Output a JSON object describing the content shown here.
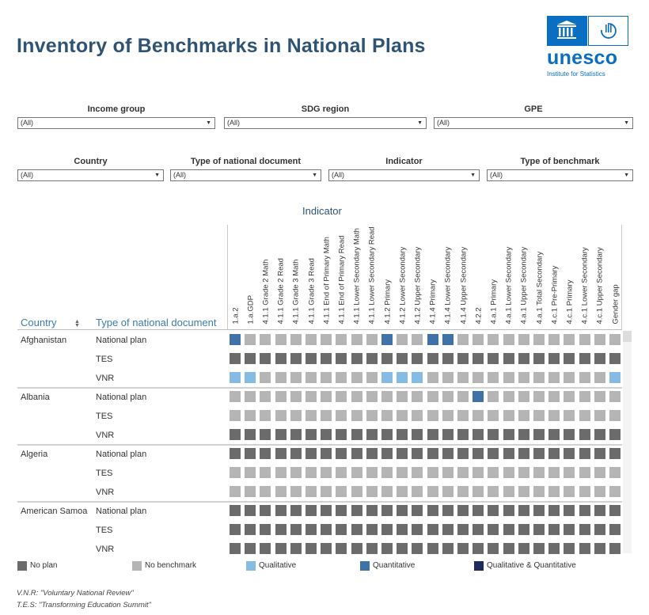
{
  "title": "Inventory of Benchmarks in National Plans",
  "logo": {
    "word": "unesco",
    "sub": "Institute for Statistics"
  },
  "filters": [
    {
      "label": "Income group",
      "value": "(All)"
    },
    {
      "label": "SDG region",
      "value": "(All)"
    },
    {
      "label": "GPE",
      "value": "(All)"
    },
    {
      "label": "Country",
      "value": "(All)"
    },
    {
      "label": "Type of national document",
      "value": "(All)"
    },
    {
      "label": "Indicator",
      "value": "(All)"
    },
    {
      "label": "Type of benchmark",
      "value": "(All)"
    }
  ],
  "table": {
    "indicator_title": "Indicator",
    "country_header": "Country",
    "doctype_header": "Type of national document",
    "columns": [
      "1.a.2",
      "1.a.GDP",
      "4.1.1 Grade 2 Math",
      "4.1.1 Grade 2 Read",
      "4.1.1 Grade 3 Math",
      "4.1.1 Grade 3 Read",
      "4.1.1 End of Primary Math",
      "4.1.1 End of Primary Read",
      "4.1.1 Lower Secondary Math",
      "4.1.1 Lower Secondary Read",
      "4.1.2 Primary",
      "4.1.2 Lower Secondary",
      "4.1.2 Upper Secondary",
      "4.1.4 Primary",
      "4.1.4 Lower Secondary",
      "4.1.4 Upper Secondary",
      "4.2.2",
      "4.a.1 Primary",
      "4.a.1 Lower Secondary",
      "4.a.1 Upper Secondary",
      "4.a.1 Total Secondary",
      "4.c.1 Pre-Primary",
      "4.c.1 Primary",
      "4.c.1 Lower Secondary",
      "4.c.1 Upper Secondary",
      "Gender gap"
    ],
    "countries": [
      {
        "name": "Afghanistan",
        "rows": [
          {
            "type": "National plan",
            "cells": "QNNNNNNNNNQNNQQNNNNNNNNNNN"
          },
          {
            "type": "TES",
            "cells": "PPPPPPPPPPPPPPPPPPPPPPPPPP"
          },
          {
            "type": "VNR",
            "cells": "LLNNNNNNNNLLLNNNNNNNNNNNNL"
          }
        ]
      },
      {
        "name": "Albania",
        "rows": [
          {
            "type": "National plan",
            "cells": "NNNNNNNNNNNNNNNNQNNNNNNNNN"
          },
          {
            "type": "TES",
            "cells": "NNNNNNNNNNNNNNNNNNNNNNNNNN"
          },
          {
            "type": "VNR",
            "cells": "PPPPPPPPPPPPPPPPPPPPPPPPPP"
          }
        ]
      },
      {
        "name": "Algeria",
        "rows": [
          {
            "type": "National plan",
            "cells": "PPPPPPPPPPPPPPPPPPPPPPPPPP"
          },
          {
            "type": "TES",
            "cells": "NNNNNNNNNNNNNNNNNNNNNNNNNN"
          },
          {
            "type": "VNR",
            "cells": "NNNNNNNNNNNNNNNNNNNNNNNNNN"
          }
        ]
      },
      {
        "name": "American Samoa",
        "rows": [
          {
            "type": "National plan",
            "cells": "PPPPPPPPPPPPPPPPPPPPPPPPPP"
          },
          {
            "type": "TES",
            "cells": "PPPPPPPPPPPPPPPPPPPPPPPPPP"
          },
          {
            "type": "VNR",
            "cells": "PPPPPPPPPPPPPPPPPPPPPPPPPP"
          }
        ]
      }
    ]
  },
  "legend": [
    {
      "code": "P",
      "label": "No plan",
      "color": "#6b6b6b"
    },
    {
      "code": "N",
      "label": "No benchmark",
      "color": "#b5b5b5"
    },
    {
      "code": "L",
      "label": "Qualitative",
      "color": "#86bbe3"
    },
    {
      "code": "Q",
      "label": "Quantitative",
      "color": "#3f72a6"
    },
    {
      "code": "B",
      "label": "Qualitative & Quantitative",
      "color": "#1e2b5c"
    }
  ],
  "footnotes": [
    "V.N.R: \"Voluntary National Review\"",
    "T.E.S: \"Transforming Education Summit\""
  ]
}
